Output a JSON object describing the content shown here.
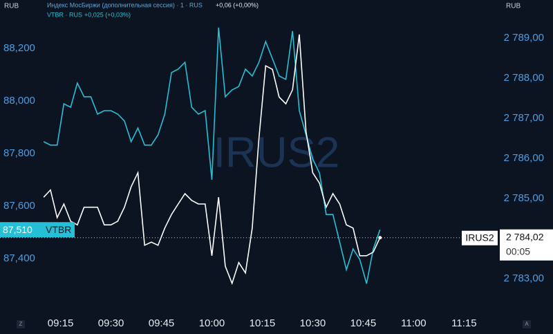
{
  "chart_data": {
    "type": "line",
    "currency": "RUB",
    "watermark": "IRUS2",
    "countdown": "00:05",
    "x": [
      "09:10",
      "09:12",
      "09:14",
      "09:16",
      "09:18",
      "09:20",
      "09:22",
      "09:24",
      "09:26",
      "09:28",
      "09:30",
      "09:32",
      "09:34",
      "09:36",
      "09:38",
      "09:40",
      "09:42",
      "09:44",
      "09:46",
      "09:48",
      "09:50",
      "09:52",
      "09:54",
      "09:56",
      "09:58",
      "10:00",
      "10:02",
      "10:04",
      "10:06",
      "10:08",
      "10:10",
      "10:12",
      "10:14",
      "10:16",
      "10:18",
      "10:20",
      "10:22",
      "10:24",
      "10:26",
      "10:28",
      "10:30",
      "10:32",
      "10:34",
      "10:36",
      "10:38",
      "10:40",
      "10:42",
      "10:44",
      "10:46",
      "10:48",
      "10:50"
    ],
    "xlim": [
      "08:57",
      "11:25"
    ],
    "xticks": [
      "09:15",
      "09:30",
      "09:45",
      "10:00",
      "10:15",
      "10:30",
      "10:45",
      "11:00",
      "11:15"
    ],
    "ylim": [
      87187,
      88384
    ],
    "yticks": [
      {
        "value": 87400,
        "label": "87,400"
      },
      {
        "value": 87600,
        "label": "87,600"
      },
      {
        "value": 87800,
        "label": "87,800"
      },
      {
        "value": 88000,
        "label": "88,000"
      },
      {
        "value": 88200,
        "label": "88,200"
      }
    ],
    "y2lim": [
      2782.1,
      2789.95
    ],
    "y2ticks": [
      {
        "value": 2783,
        "label": "2 783,00"
      },
      {
        "value": 2785,
        "label": "2 785,00"
      },
      {
        "value": 2786,
        "label": "2 786,00"
      },
      {
        "value": 2787,
        "label": "2 787,00"
      },
      {
        "value": 2788,
        "label": "2 788,00"
      },
      {
        "value": 2789,
        "label": "2 789,00"
      }
    ],
    "series": [
      {
        "name": "Индекс МосБиржи (дополнительная сессия) · 1 · RUS",
        "change": "+0,06 (+0,00%)",
        "tag": "IRUS2",
        "last_label": "2 784,02",
        "color": "#ffffff",
        "axis": "y2",
        "values": [
          2785.03,
          2785.21,
          2784.52,
          2784.86,
          2784.43,
          2784.34,
          2784.78,
          2784.78,
          2784.78,
          2784.34,
          2784.34,
          2784.43,
          2784.78,
          2785.29,
          2785.64,
          2783.83,
          2783.91,
          2783.83,
          2784.26,
          2784.6,
          2784.86,
          2785.12,
          2784.95,
          2784.86,
          2784.86,
          2783.57,
          2785.03,
          2783.31,
          2782.88,
          2783.4,
          2783.14,
          2784.26,
          2786.5,
          2788.31,
          2788.22,
          2787.53,
          2787.36,
          2787.71,
          2789.09,
          2786.67,
          2785.64,
          2785.38,
          2784.78,
          2785.12,
          2784.86,
          2784.34,
          2784.26,
          2783.57,
          2783.57,
          2783.66,
          2784.02
        ]
      },
      {
        "name": "VTBR · RUS",
        "change": "+0,025 (+0,03%)",
        "tag": "VTBR",
        "last_label": "87,510",
        "color": "#26c0d6",
        "values": [
          87845,
          87832,
          87832,
          87989,
          87976,
          88068,
          88016,
          88016,
          87950,
          87963,
          87963,
          87950,
          87924,
          87845,
          87897,
          87832,
          87832,
          87871,
          87950,
          88108,
          88121,
          88147,
          87976,
          87950,
          87963,
          87700,
          88279,
          88016,
          88042,
          88055,
          88121,
          88095,
          88147,
          88226,
          88161,
          88095,
          88082,
          88266,
          87963,
          87871,
          87779,
          87726,
          87568,
          87568,
          87463,
          87358,
          87437,
          87397,
          87305,
          87437,
          87510
        ]
      }
    ]
  }
}
